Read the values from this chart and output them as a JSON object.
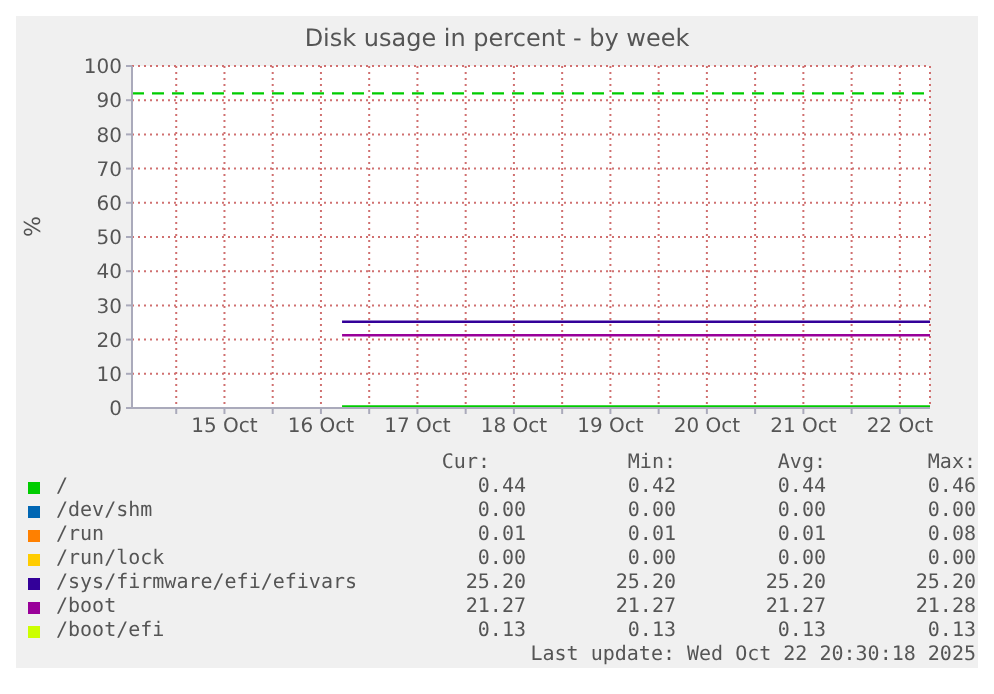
{
  "chart_data": {
    "type": "line",
    "title": "Disk usage in percent - by week",
    "ylabel": "%",
    "xlim": [
      "2025-10-14T13:00",
      "2025-10-22T19:30"
    ],
    "xticks": [
      {
        "value": "2025-10-15T00:00",
        "label": null
      },
      {
        "value": "2025-10-15T12:00",
        "label": "15 Oct"
      },
      {
        "value": "2025-10-16T00:00",
        "label": null
      },
      {
        "value": "2025-10-16T12:00",
        "label": "16 Oct"
      },
      {
        "value": "2025-10-17T00:00",
        "label": null
      },
      {
        "value": "2025-10-17T12:00",
        "label": "17 Oct"
      },
      {
        "value": "2025-10-18T00:00",
        "label": null
      },
      {
        "value": "2025-10-18T12:00",
        "label": "18 Oct"
      },
      {
        "value": "2025-10-19T00:00",
        "label": null
      },
      {
        "value": "2025-10-19T12:00",
        "label": "19 Oct"
      },
      {
        "value": "2025-10-20T00:00",
        "label": null
      },
      {
        "value": "2025-10-20T12:00",
        "label": "20 Oct"
      },
      {
        "value": "2025-10-21T00:00",
        "label": null
      },
      {
        "value": "2025-10-21T12:00",
        "label": "21 Oct"
      },
      {
        "value": "2025-10-22T00:00",
        "label": null
      },
      {
        "value": "2025-10-22T12:00",
        "label": "22 Oct"
      }
    ],
    "ylim": [
      0,
      100
    ],
    "yticks": [
      0,
      10,
      20,
      30,
      40,
      50,
      60,
      70,
      80,
      90,
      100
    ],
    "grid": true,
    "legend": "bottom",
    "marker": "none",
    "line_style": "solid",
    "ref_lines": [
      {
        "axis": "y",
        "value": 92,
        "color": "#00cc00",
        "line_style": "dashed"
      }
    ],
    "series": [
      {
        "name": "/",
        "color": "#00cc00",
        "x": [
          "2025-10-16T17:15",
          "2025-10-22T19:30"
        ],
        "values": [
          0.44,
          0.44
        ]
      },
      {
        "name": "/dev/shm",
        "color": "#0066b3"
      },
      {
        "name": "/run",
        "color": "#ff8000"
      },
      {
        "name": "/run/lock",
        "color": "#ffcc00"
      },
      {
        "name": "/sys/firmware/efi/efivars",
        "color": "#330099",
        "x": [
          "2025-10-16T17:15",
          "2025-10-22T19:30"
        ],
        "values": [
          25.2,
          25.2
        ]
      },
      {
        "name": "/boot",
        "color": "#990099",
        "x": [
          "2025-10-16T17:15",
          "2025-10-22T19:30"
        ],
        "values": [
          21.27,
          21.27
        ]
      },
      {
        "name": "/boot/efi",
        "color": "#ccff00"
      }
    ],
    "annotations": [
      "Cur:",
      "Min:",
      "Avg:",
      "Max:",
      "0.44",
      "0.42",
      "0.44",
      "0.46",
      "0.00",
      "0.00",
      "0.00",
      "0.00",
      "0.01",
      "0.01",
      "0.01",
      "0.08",
      "0.00",
      "0.00",
      "0.00",
      "0.00",
      "25.20",
      "25.20",
      "25.20",
      "25.20",
      "21.27",
      "21.27",
      "21.27",
      "21.28",
      "0.13",
      "0.13",
      "0.13",
      "0.13",
      "Last update: Wed Oct 22 20:30:18 2025"
    ]
  }
}
